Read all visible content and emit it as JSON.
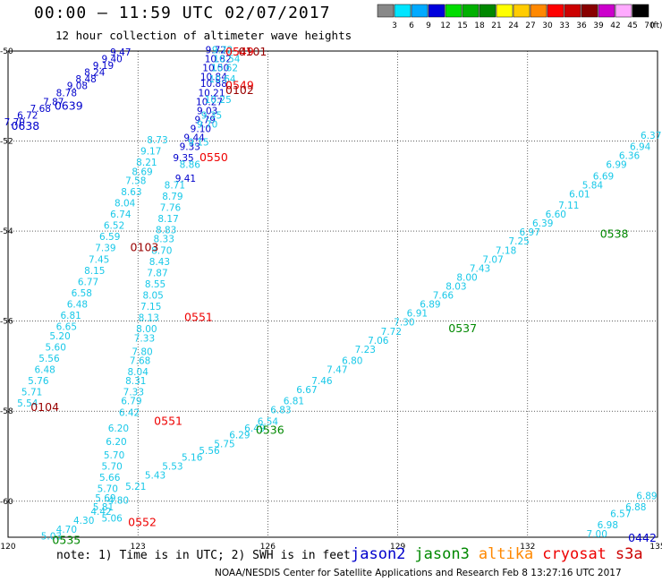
{
  "title": "00:00 — 11:59 UTC 02/07/2017",
  "subtitle": "12 hour collection of altimeter wave heights",
  "legend": {
    "unit": "(ft)",
    "boxes": [
      {
        "color": "#888888",
        "label": "3"
      },
      {
        "color": "#00e5ff",
        "label": "6"
      },
      {
        "color": "#00aaff",
        "label": "9"
      },
      {
        "color": "#0000dd",
        "label": "12"
      },
      {
        "color": "#00dd00",
        "label": "15"
      },
      {
        "color": "#00b000",
        "label": "18"
      },
      {
        "color": "#008800",
        "label": "21"
      },
      {
        "color": "#ffff00",
        "label": "24"
      },
      {
        "color": "#ffcc00",
        "label": "27"
      },
      {
        "color": "#ff8800",
        "label": "30"
      },
      {
        "color": "#ff0000",
        "label": "33"
      },
      {
        "color": "#cc0000",
        "label": "36"
      },
      {
        "color": "#880000",
        "label": "39"
      },
      {
        "color": "#cc00cc",
        "label": "42"
      },
      {
        "color": "#ffaaff",
        "label": "45"
      },
      {
        "color": "#000000",
        "label": "70"
      }
    ]
  },
  "axes": {
    "lat_labels": [
      "-50",
      "-52",
      "-54",
      "-56",
      "-58",
      "-60"
    ],
    "lat_values": [
      -50,
      -52,
      -54,
      -56,
      -58,
      -60
    ],
    "lon_labels": [
      "120",
      "123",
      "126",
      "129",
      "132",
      "135"
    ],
    "lon_values": [
      120,
      123,
      126,
      129,
      132,
      135
    ]
  },
  "note": "note: 1) Time is in UTC; 2) SWH is in feet",
  "missions": [
    {
      "name": "jason2",
      "color": "#0000cc"
    },
    {
      "name": "jason3",
      "color": "#008800"
    },
    {
      "name": "altika",
      "color": "#ff8800"
    },
    {
      "name": "cryosat",
      "color": "#ee0000"
    },
    {
      "name": "s3a",
      "color": "#cc0000"
    }
  ],
  "credit": "NOAA/NESDIS Center for Satellite Applications and Research   Feb  8 13:27:16 UTC 2017",
  "colors": {
    "cyan": "#18c8e8",
    "blue": "#0000cc",
    "green": "#008800",
    "red": "#ee0000",
    "darkred": "#990000"
  },
  "tracks": [
    {
      "name": "track-0638-0639",
      "color": "#0000cc",
      "points": [
        {
          "lon": 120.15,
          "lat": -51.65,
          "v": "7.70"
        },
        {
          "lon": 120.45,
          "lat": -51.5,
          "v": "6.72"
        },
        {
          "lon": 120.75,
          "lat": -51.35,
          "v": "7.68"
        },
        {
          "lon": 121.05,
          "lat": -51.2,
          "v": "7.87"
        },
        {
          "lon": 121.35,
          "lat": -51.0,
          "v": "8.78"
        },
        {
          "lon": 121.6,
          "lat": -50.85,
          "v": "9.08"
        },
        {
          "lon": 121.8,
          "lat": -50.7,
          "v": "8.48"
        },
        {
          "lon": 122.0,
          "lat": -50.55,
          "v": "8.24"
        },
        {
          "lon": 122.2,
          "lat": -50.4,
          "v": "9.19"
        },
        {
          "lon": 122.4,
          "lat": -50.25,
          "v": "9.40"
        },
        {
          "lon": 122.6,
          "lat": -50.1,
          "v": "9.47"
        }
      ]
    },
    {
      "name": "track-0102-0100",
      "color": "#0000cc",
      "points": [
        {
          "lon": 124.8,
          "lat": -50.05,
          "v": "9.72"
        },
        {
          "lon": 124.85,
          "lat": -50.25,
          "v": "10.82"
        },
        {
          "lon": 124.8,
          "lat": -50.45,
          "v": "10.50"
        },
        {
          "lon": 124.75,
          "lat": -50.65,
          "v": "10.84"
        },
        {
          "lon": 124.75,
          "lat": -50.8,
          "v": "10.88"
        },
        {
          "lon": 124.7,
          "lat": -51.0,
          "v": "10.21"
        },
        {
          "lon": 124.65,
          "lat": -51.2,
          "v": "10.27"
        },
        {
          "lon": 124.6,
          "lat": -51.4,
          "v": "9.03"
        },
        {
          "lon": 124.55,
          "lat": -51.6,
          "v": "9.79"
        },
        {
          "lon": 124.45,
          "lat": -51.8,
          "v": "9.10"
        },
        {
          "lon": 124.3,
          "lat": -52.0,
          "v": "9.44"
        },
        {
          "lon": 124.2,
          "lat": -52.2,
          "v": "9.33"
        },
        {
          "lon": 124.05,
          "lat": -52.45,
          "v": "9.35"
        },
        {
          "lon": 124.1,
          "lat": -52.9,
          "v": "9.41"
        }
      ]
    },
    {
      "name": "track-0103-0104",
      "color": "#18c8e8",
      "points": [
        {
          "lon": 120.45,
          "lat": -57.9,
          "v": "5.54"
        },
        {
          "lon": 120.55,
          "lat": -57.65,
          "v": "5.71"
        },
        {
          "lon": 120.7,
          "lat": -57.4,
          "v": "5.76"
        },
        {
          "lon": 120.85,
          "lat": -57.15,
          "v": "6.48"
        },
        {
          "lon": 120.95,
          "lat": -56.9,
          "v": "5.56"
        },
        {
          "lon": 121.1,
          "lat": -56.65,
          "v": "5.60"
        },
        {
          "lon": 121.2,
          "lat": -56.4,
          "v": "5.20"
        },
        {
          "lon": 121.35,
          "lat": -56.2,
          "v": "6.65"
        },
        {
          "lon": 121.45,
          "lat": -55.95,
          "v": "6.81"
        },
        {
          "lon": 121.6,
          "lat": -55.7,
          "v": "6.48"
        },
        {
          "lon": 121.7,
          "lat": -55.45,
          "v": "6.58"
        },
        {
          "lon": 121.85,
          "lat": -55.2,
          "v": "6.77"
        },
        {
          "lon": 122.0,
          "lat": -54.95,
          "v": "8.15"
        },
        {
          "lon": 122.1,
          "lat": -54.7,
          "v": "7.45"
        },
        {
          "lon": 122.25,
          "lat": -54.45,
          "v": "7.39"
        },
        {
          "lon": 122.35,
          "lat": -54.2,
          "v": "6.59"
        },
        {
          "lon": 122.45,
          "lat": -53.95,
          "v": "6.52"
        },
        {
          "lon": 122.6,
          "lat": -53.7,
          "v": "6.74"
        },
        {
          "lon": 122.7,
          "lat": -53.45,
          "v": "8.04"
        },
        {
          "lon": 122.85,
          "lat": -53.2,
          "v": "8.63"
        },
        {
          "lon": 122.95,
          "lat": -52.95,
          "v": "7.58"
        },
        {
          "lon": 123.1,
          "lat": -52.75,
          "v": "8.69"
        },
        {
          "lon": 123.2,
          "lat": -52.55,
          "v": "8.21"
        },
        {
          "lon": 123.3,
          "lat": -52.3,
          "v": "9.17"
        },
        {
          "lon": 123.45,
          "lat": -52.05,
          "v": "8.73"
        }
      ]
    },
    {
      "name": "track-0549-0550",
      "color": "#18c8e8",
      "points": [
        {
          "lon": 124.95,
          "lat": -50.05,
          "v": "9.72"
        },
        {
          "lon": 125.05,
          "lat": -50.25,
          "v": "10.54"
        },
        {
          "lon": 125.0,
          "lat": -50.45,
          "v": "10.62"
        },
        {
          "lon": 124.95,
          "lat": -50.7,
          "v": "10.64"
        },
        {
          "lon": 124.85,
          "lat": -51.15,
          "v": "10.25"
        },
        {
          "lon": 124.7,
          "lat": -51.5,
          "v": "9.35"
        },
        {
          "lon": 124.6,
          "lat": -51.7,
          "v": "9.70"
        },
        {
          "lon": 124.4,
          "lat": -52.1,
          "v": "9.15"
        },
        {
          "lon": 124.2,
          "lat": -52.6,
          "v": "8.86"
        }
      ]
    },
    {
      "name": "track-0550-0551",
      "color": "#18c8e8",
      "points": [
        {
          "lon": 123.85,
          "lat": -53.05,
          "v": "8.71"
        },
        {
          "lon": 123.8,
          "lat": -53.3,
          "v": "8.79"
        },
        {
          "lon": 123.75,
          "lat": -53.55,
          "v": "7.76"
        },
        {
          "lon": 123.7,
          "lat": -53.8,
          "v": "8.17"
        },
        {
          "lon": 123.65,
          "lat": -54.05,
          "v": "8.83"
        },
        {
          "lon": 123.6,
          "lat": -54.25,
          "v": "8.33"
        },
        {
          "lon": 123.55,
          "lat": -54.5,
          "v": "8.70"
        },
        {
          "lon": 123.5,
          "lat": -54.75,
          "v": "8.43"
        },
        {
          "lon": 123.45,
          "lat": -55.0,
          "v": "7.87"
        },
        {
          "lon": 123.4,
          "lat": -55.25,
          "v": "8.55"
        },
        {
          "lon": 123.35,
          "lat": -55.5,
          "v": "8.05"
        },
        {
          "lon": 123.3,
          "lat": -55.75,
          "v": "7.15"
        },
        {
          "lon": 123.25,
          "lat": -56.0,
          "v": "8.13"
        },
        {
          "lon": 123.2,
          "lat": -56.25,
          "v": "8.00"
        },
        {
          "lon": 123.15,
          "lat": -56.45,
          "v": "7.33"
        },
        {
          "lon": 123.1,
          "lat": -56.75,
          "v": "7.80"
        },
        {
          "lon": 123.05,
          "lat": -56.95,
          "v": "7.68"
        },
        {
          "lon": 123.0,
          "lat": -57.2,
          "v": "8.04"
        },
        {
          "lon": 122.95,
          "lat": -57.4,
          "v": "8.31"
        },
        {
          "lon": 122.9,
          "lat": -57.65,
          "v": "7.33"
        },
        {
          "lon": 122.85,
          "lat": -57.85,
          "v": "6.79"
        },
        {
          "lon": 122.8,
          "lat": -58.1,
          "v": "6.42"
        }
      ]
    },
    {
      "name": "track-0551-0552",
      "color": "#18c8e8",
      "points": [
        {
          "lon": 122.55,
          "lat": -58.45,
          "v": "6.20"
        },
        {
          "lon": 122.5,
          "lat": -58.75,
          "v": "6.20"
        },
        {
          "lon": 122.45,
          "lat": -59.05,
          "v": "5.70"
        },
        {
          "lon": 122.4,
          "lat": -59.3,
          "v": "5.70"
        },
        {
          "lon": 122.35,
          "lat": -59.55,
          "v": "5.66"
        },
        {
          "lon": 122.3,
          "lat": -59.8,
          "v": "5.70"
        },
        {
          "lon": 122.25,
          "lat": -60.0,
          "v": "5.69"
        },
        {
          "lon": 122.2,
          "lat": -60.2,
          "v": "5.81"
        },
        {
          "lon": 122.4,
          "lat": -60.45,
          "v": "5.06"
        }
      ]
    },
    {
      "name": "track-0535-0538",
      "color": "#18c8e8",
      "points": [
        {
          "lon": 121.0,
          "lat": -60.85,
          "v": "5.03"
        },
        {
          "lon": 121.35,
          "lat": -60.7,
          "v": "4.70"
        },
        {
          "lon": 121.75,
          "lat": -60.5,
          "v": "4.30"
        },
        {
          "lon": 122.15,
          "lat": -60.3,
          "v": "4.42"
        },
        {
          "lon": 122.55,
          "lat": -60.05,
          "v": "4.80"
        },
        {
          "lon": 122.95,
          "lat": -59.75,
          "v": "5.21"
        },
        {
          "lon": 123.4,
          "lat": -59.5,
          "v": "5.43"
        },
        {
          "lon": 123.8,
          "lat": -59.3,
          "v": "5.53"
        },
        {
          "lon": 124.25,
          "lat": -59.1,
          "v": "5.16"
        },
        {
          "lon": 124.65,
          "lat": -58.95,
          "v": "5.56"
        },
        {
          "lon": 125.0,
          "lat": -58.8,
          "v": "5.75"
        },
        {
          "lon": 125.35,
          "lat": -58.6,
          "v": "6.29"
        },
        {
          "lon": 125.7,
          "lat": -58.45,
          "v": "6.49"
        },
        {
          "lon": 126.0,
          "lat": -58.3,
          "v": "6.54"
        },
        {
          "lon": 126.3,
          "lat": -58.05,
          "v": "6.83"
        },
        {
          "lon": 126.6,
          "lat": -57.85,
          "v": "6.81"
        },
        {
          "lon": 126.9,
          "lat": -57.6,
          "v": "6.67"
        },
        {
          "lon": 127.25,
          "lat": -57.4,
          "v": "7.46"
        },
        {
          "lon": 127.6,
          "lat": -57.15,
          "v": "7.47"
        },
        {
          "lon": 127.95,
          "lat": -56.95,
          "v": "6.80"
        },
        {
          "lon": 128.25,
          "lat": -56.7,
          "v": "7.23"
        },
        {
          "lon": 128.55,
          "lat": -56.5,
          "v": "7.06"
        },
        {
          "lon": 128.85,
          "lat": -56.3,
          "v": "7.72"
        },
        {
          "lon": 129.15,
          "lat": -56.1,
          "v": "7.30"
        },
        {
          "lon": 129.45,
          "lat": -55.9,
          "v": "6.91"
        },
        {
          "lon": 129.75,
          "lat": -55.7,
          "v": "6.89"
        },
        {
          "lon": 130.05,
          "lat": -55.5,
          "v": "7.66"
        },
        {
          "lon": 130.35,
          "lat": -55.3,
          "v": "8.03"
        },
        {
          "lon": 130.6,
          "lat": -55.1,
          "v": "8.00"
        },
        {
          "lon": 130.9,
          "lat": -54.9,
          "v": "7.43"
        },
        {
          "lon": 131.2,
          "lat": -54.7,
          "v": "7.07"
        },
        {
          "lon": 131.5,
          "lat": -54.5,
          "v": "7.18"
        },
        {
          "lon": 131.8,
          "lat": -54.3,
          "v": "7.25"
        },
        {
          "lon": 132.05,
          "lat": -54.1,
          "v": "6.97"
        },
        {
          "lon": 132.35,
          "lat": -53.9,
          "v": "6.39"
        },
        {
          "lon": 132.65,
          "lat": -53.7,
          "v": "6.60"
        },
        {
          "lon": 132.95,
          "lat": -53.5,
          "v": "7.11"
        },
        {
          "lon": 133.2,
          "lat": -53.25,
          "v": "6.01"
        },
        {
          "lon": 133.5,
          "lat": -53.05,
          "v": "5.84"
        },
        {
          "lon": 133.75,
          "lat": -52.85,
          "v": "6.69"
        },
        {
          "lon": 134.05,
          "lat": -52.6,
          "v": "6.99"
        },
        {
          "lon": 134.35,
          "lat": -52.4,
          "v": "6.36"
        },
        {
          "lon": 134.6,
          "lat": -52.2,
          "v": "6.94"
        },
        {
          "lon": 134.85,
          "lat": -51.95,
          "v": "6.37"
        }
      ]
    },
    {
      "name": "track-0442",
      "color": "#18c8e8",
      "points": [
        {
          "lon": 133.6,
          "lat": -60.8,
          "v": "7.00"
        },
        {
          "lon": 133.85,
          "lat": -60.6,
          "v": "6.98"
        },
        {
          "lon": 134.15,
          "lat": -60.35,
          "v": "6.57"
        },
        {
          "lon": 134.5,
          "lat": -60.2,
          "v": "6.88"
        },
        {
          "lon": 134.75,
          "lat": -59.95,
          "v": "6.89"
        }
      ]
    }
  ],
  "time_labels": [
    {
      "text": "0638",
      "color": "#0000cc",
      "lon": 120.4,
      "lat": -51.75
    },
    {
      "text": "0639",
      "color": "#0000cc",
      "lon": 121.4,
      "lat": -51.3
    },
    {
      "text": "0549",
      "color": "#ee0000",
      "lon": 125.35,
      "lat": -50.1
    },
    {
      "text": "0101",
      "color": "#990000",
      "lon": 125.65,
      "lat": -50.1
    },
    {
      "text": "0549",
      "color": "#ee0000",
      "lon": 125.35,
      "lat": -50.85
    },
    {
      "text": "0102",
      "color": "#990000",
      "lon": 125.35,
      "lat": -50.95
    },
    {
      "text": "0550",
      "color": "#ee0000",
      "lon": 124.75,
      "lat": -52.45
    },
    {
      "text": "0103",
      "color": "#990000",
      "lon": 123.15,
      "lat": -54.45
    },
    {
      "text": "0551",
      "color": "#ee0000",
      "lon": 124.4,
      "lat": -56.0
    },
    {
      "text": "0104",
      "color": "#990000",
      "lon": 120.85,
      "lat": -58.0
    },
    {
      "text": "0551",
      "color": "#ee0000",
      "lon": 123.7,
      "lat": -58.3
    },
    {
      "text": "0552",
      "color": "#ee0000",
      "lon": 123.1,
      "lat": -60.55
    },
    {
      "text": "0535",
      "color": "#008800",
      "lon": 121.35,
      "lat": -60.95
    },
    {
      "text": "0536",
      "color": "#008800",
      "lon": 126.05,
      "lat": -58.5
    },
    {
      "text": "0537",
      "color": "#008800",
      "lon": 130.5,
      "lat": -56.25
    },
    {
      "text": "0538",
      "color": "#008800",
      "lon": 134.0,
      "lat": -54.15
    },
    {
      "text": "0442",
      "color": "#0000cc",
      "lon": 134.65,
      "lat": -60.9
    }
  ]
}
